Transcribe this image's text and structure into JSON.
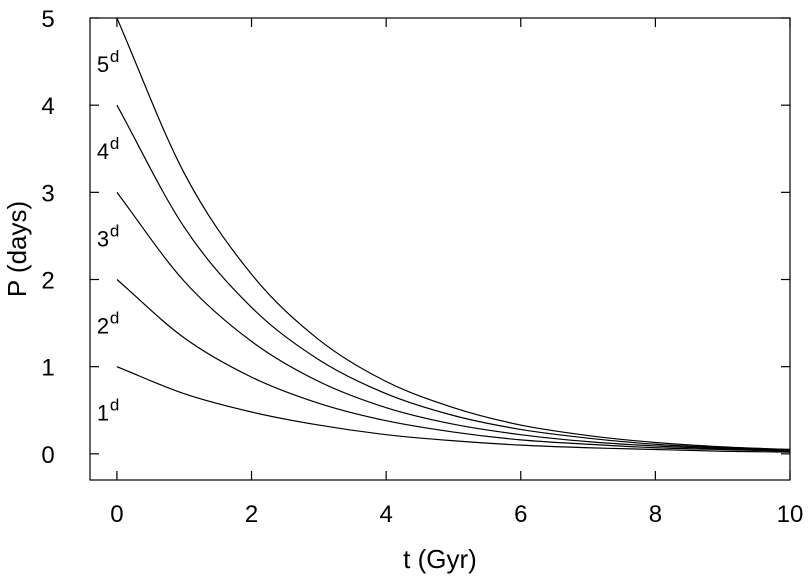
{
  "chart_data": {
    "type": "line",
    "title": "",
    "xlabel": "t (Gyr)",
    "ylabel": "P (days)",
    "xlim": [
      -0.4,
      10
    ],
    "ylim": [
      -0.3,
      5
    ],
    "xticks": [
      "0",
      "2",
      "4",
      "6",
      "8",
      "10"
    ],
    "xtick_values": [
      0,
      2,
      4,
      6,
      8,
      10
    ],
    "yticks": [
      "0",
      "1",
      "2",
      "3",
      "4",
      "5"
    ],
    "ytick_values": [
      0,
      1,
      2,
      3,
      4,
      5
    ],
    "grid": false,
    "legend": "none",
    "line_color": "#000000",
    "x": [
      0,
      1,
      2,
      3,
      4,
      5,
      6,
      7,
      8,
      9,
      10
    ],
    "series": [
      {
        "label_base": "1",
        "label_sup": "d",
        "values": [
          1.0,
          0.69,
          0.48,
          0.33,
          0.22,
          0.15,
          0.1,
          0.07,
          0.05,
          0.03,
          0.02
        ]
      },
      {
        "label_base": "2",
        "label_sup": "d",
        "values": [
          2.0,
          1.33,
          0.88,
          0.58,
          0.38,
          0.25,
          0.16,
          0.11,
          0.07,
          0.05,
          0.03
        ]
      },
      {
        "label_base": "3",
        "label_sup": "d",
        "values": [
          3.0,
          1.98,
          1.29,
          0.83,
          0.53,
          0.34,
          0.22,
          0.14,
          0.09,
          0.06,
          0.04
        ]
      },
      {
        "label_base": "4",
        "label_sup": "d",
        "values": [
          4.0,
          2.6,
          1.68,
          1.08,
          0.69,
          0.44,
          0.28,
          0.18,
          0.11,
          0.07,
          0.05
        ]
      },
      {
        "label_base": "5",
        "label_sup": "d",
        "values": [
          5.0,
          3.22,
          2.06,
          1.31,
          0.83,
          0.53,
          0.33,
          0.21,
          0.13,
          0.08,
          0.05
        ]
      }
    ]
  }
}
